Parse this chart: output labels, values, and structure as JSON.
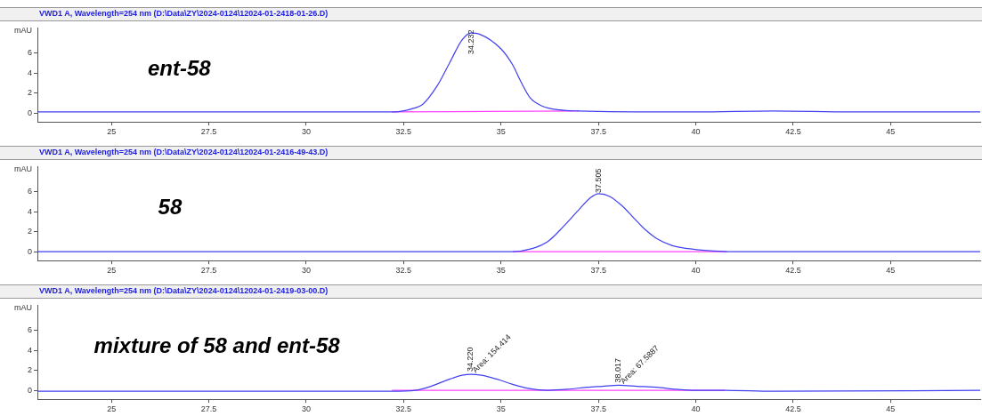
{
  "chart_data": [
    {
      "type": "line",
      "title": "VWD1 A, Wavelength=254 nm (D:\\Data\\ZY\\2024-0124\\12024-01-2418-01-26.D)",
      "subtitle": "ent-58",
      "ylabel": "mAU",
      "xlim": [
        23.1,
        47.3
      ],
      "xticks": [
        25,
        27.5,
        30,
        32.5,
        35,
        37.5,
        40,
        42.5,
        45
      ],
      "ylim": [
        -0.9,
        8.5
      ],
      "yticks": [
        0,
        2,
        4,
        6
      ],
      "grid": false,
      "legend": false,
      "marker": "none",
      "series": [
        {
          "color": "#4040f0",
          "x": [
            23.1,
            25,
            30,
            32.2,
            32.7,
            33.0,
            33.36,
            33.68,
            34.0,
            34.23,
            34.43,
            35.0,
            35.3,
            35.5,
            35.75,
            36.05,
            36.5,
            37.0,
            40,
            42,
            44,
            47.3
          ],
          "values": [
            0.1,
            0.1,
            0.1,
            0.1,
            0.4,
            0.9,
            2.7,
            5.0,
            7.3,
            8.0,
            7.9,
            6.4,
            4.8,
            3.2,
            1.5,
            0.7,
            0.3,
            0.2,
            0.1,
            0.2,
            0.1,
            0.1
          ]
        },
        {
          "color": "#ff40ff",
          "x": [
            32.2,
            37.0
          ],
          "values": [
            0.1,
            0.2
          ]
        }
      ],
      "annotations": [
        {
          "text": "34.232",
          "x": 34.23,
          "y": 8.0
        }
      ]
    },
    {
      "type": "line",
      "title": "VWD1 A, Wavelength=254 nm (D:\\Data\\ZY\\2024-0124\\12024-01-2416-49-43.D)",
      "subtitle": "58",
      "ylabel": "mAU",
      "xlim": [
        23.1,
        47.3
      ],
      "xticks": [
        25,
        27.5,
        30,
        32.5,
        35,
        37.5,
        40,
        42.5,
        45
      ],
      "ylim": [
        -0.9,
        8.5
      ],
      "yticks": [
        0,
        2,
        4,
        6
      ],
      "grid": false,
      "legend": false,
      "marker": "none",
      "series": [
        {
          "color": "#4040f0",
          "x": [
            23.1,
            30,
            34,
            35.3,
            35.8,
            36.2,
            36.6,
            37.0,
            37.3,
            37.505,
            37.8,
            38.1,
            38.4,
            38.7,
            39.0,
            39.4,
            39.8,
            40.3,
            40.8,
            43,
            47.3
          ],
          "values": [
            0,
            0,
            0,
            0,
            0.3,
            1.0,
            2.5,
            4.2,
            5.4,
            5.8,
            5.5,
            4.6,
            3.4,
            2.2,
            1.3,
            0.6,
            0.3,
            0.1,
            0,
            0,
            0
          ]
        },
        {
          "color": "#ff40ff",
          "x": [
            35.3,
            40.8
          ],
          "values": [
            0,
            0
          ]
        }
      ],
      "annotations": [
        {
          "text": "37.505",
          "x": 37.505,
          "y": 5.8
        }
      ]
    },
    {
      "type": "line",
      "title": "VWD1 A, Wavelength=254 nm (D:\\Data\\ZY\\2024-0124\\12024-01-2419-03-00.D)",
      "subtitle": "mixture of 58 and ent-58",
      "ylabel": "mAU",
      "xlim": [
        23.1,
        47.3
      ],
      "xticks": [
        25,
        27.5,
        30,
        32.5,
        35,
        37.5,
        40,
        42.5,
        45
      ],
      "ylim": [
        -0.9,
        8.5
      ],
      "yticks": [
        0,
        2,
        4,
        6
      ],
      "grid": false,
      "legend": false,
      "marker": "none",
      "series": [
        {
          "color": "#4040f0",
          "x": [
            23.1,
            28,
            32.2,
            32.8,
            33.2,
            33.6,
            34.0,
            34.22,
            34.5,
            34.9,
            35.3,
            35.7,
            36.2,
            36.7,
            37.2,
            37.6,
            38.02,
            38.5,
            39.0,
            39.5,
            40.0,
            40.75,
            42,
            47.3
          ],
          "values": [
            -0.1,
            -0.1,
            -0.1,
            0,
            0.4,
            1.0,
            1.5,
            1.6,
            1.5,
            1.1,
            0.6,
            0.2,
            0.0,
            0.1,
            0.3,
            0.4,
            0.5,
            0.4,
            0.3,
            0.1,
            0,
            0,
            -0.1,
            0
          ]
        },
        {
          "color": "#ff40ff",
          "x": [
            32.2,
            36.2,
            40.75
          ],
          "values": [
            0,
            0,
            0
          ]
        }
      ],
      "annotations": [
        {
          "text": "34.220",
          "x": 34.22,
          "y": 1.6
        },
        {
          "text": "Area: 154.414",
          "x": 34.22,
          "y": 1.6
        },
        {
          "text": "38.017",
          "x": 38.017,
          "y": 0.5
        },
        {
          "text": "Area: 67.5887",
          "x": 38.017,
          "y": 0.5
        }
      ]
    }
  ]
}
